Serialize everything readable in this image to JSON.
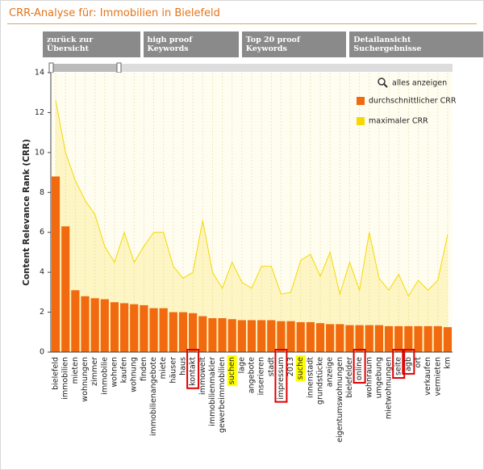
{
  "header": {
    "title": "CRR-Analyse für: Immobilien in Bielefeld"
  },
  "buttons": [
    "zurück zur Übersicht",
    "high proof Keywords",
    "Top 20 proof Keywords",
    "Detailansicht Suchergebnisse"
  ],
  "zoom_link": "alles anzeigen",
  "chart_data": {
    "type": "bar_line",
    "y_label": "Content Relevance Rank (CRR)",
    "categories": [
      "bielefeld",
      "immobilien",
      "mieten",
      "wohnungen",
      "zimmer",
      "immobilie",
      "wohnen",
      "kaufen",
      "wohnung",
      "finden",
      "immobilienangebote",
      "miete",
      "häuser",
      "haus",
      "kontakt",
      "immowelt",
      "immobilienmakler",
      "gewerbeimmobilien",
      "suchen",
      "lage",
      "angebote",
      "inserieren",
      "stadt",
      "impressum",
      "2013",
      "suche",
      "innenstadt",
      "grundstücke",
      "anzeige",
      "eigentumswohnungen",
      "bielefelder",
      "online",
      "wohnraum",
      "umgebung",
      "mietwohnungen",
      "seite",
      "agb",
      "ort",
      "verkaufen",
      "vermieten",
      "km"
    ],
    "series": [
      {
        "name": "durchschnittlicher CRR",
        "color": "#f26a0f",
        "values": [
          8.8,
          6.3,
          3.1,
          2.8,
          2.7,
          2.65,
          2.5,
          2.45,
          2.4,
          2.35,
          2.2,
          2.2,
          2.0,
          2.0,
          1.95,
          1.8,
          1.7,
          1.7,
          1.65,
          1.6,
          1.6,
          1.6,
          1.6,
          1.55,
          1.55,
          1.5,
          1.5,
          1.45,
          1.4,
          1.4,
          1.35,
          1.35,
          1.35,
          1.35,
          1.3,
          1.3,
          1.3,
          1.3,
          1.3,
          1.3,
          1.25
        ]
      },
      {
        "name": "maximaler CRR",
        "color": "#f5d800",
        "values": [
          12.6,
          10.0,
          8.6,
          7.6,
          6.9,
          5.3,
          4.5,
          6.0,
          4.5,
          5.3,
          6.0,
          6.0,
          4.3,
          3.7,
          4.0,
          6.6,
          4.0,
          3.2,
          4.5,
          3.5,
          3.2,
          4.3,
          4.3,
          2.9,
          3.0,
          4.6,
          4.9,
          3.8,
          5.0,
          2.9,
          4.5,
          3.1,
          6.0,
          3.7,
          3.1,
          3.9,
          2.8,
          3.6,
          3.1,
          3.6,
          5.9
        ]
      }
    ],
    "ylim": [
      0,
      14
    ],
    "yticks": [
      0,
      2,
      4,
      6,
      8,
      10,
      12,
      14
    ],
    "grid": true,
    "label_highlights": {
      "red": [
        14,
        23,
        31,
        35,
        36
      ],
      "yellow": [
        18,
        25
      ]
    }
  }
}
